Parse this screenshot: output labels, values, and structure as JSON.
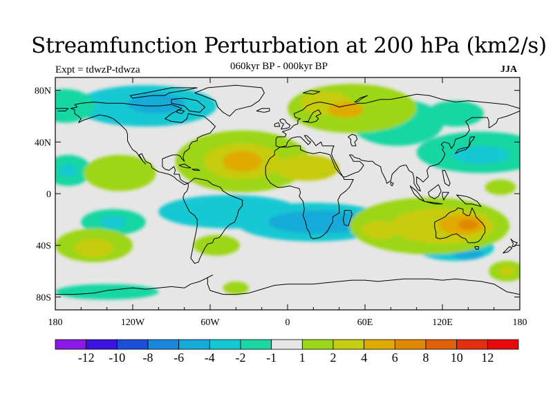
{
  "title": "Streamfunction Perturbation at 200 hPa (km2/s)",
  "subtitle_left": "Expt = tdwzP-tdwza",
  "subtitle_center": "060kyr BP - 000kyr BP",
  "subtitle_right": "JJA",
  "map": {
    "projection": "cylindrical-equidistant",
    "lon_range": [
      -180,
      180
    ],
    "lat_range": [
      -90,
      90
    ],
    "background_color": "#e6e6e6",
    "lon_ticks": [
      {
        "value": -180,
        "label": "180"
      },
      {
        "value": -120,
        "label": "120W"
      },
      {
        "value": -60,
        "label": "60W"
      },
      {
        "value": 0,
        "label": "0"
      },
      {
        "value": 60,
        "label": "60E"
      },
      {
        "value": 120,
        "label": "120E"
      },
      {
        "value": 180,
        "label": "180"
      }
    ],
    "lat_ticks": [
      {
        "value": 80,
        "label": "80N"
      },
      {
        "value": 40,
        "label": "40N"
      },
      {
        "value": 0,
        "label": "0"
      },
      {
        "value": -40,
        "label": "40S"
      },
      {
        "value": -80,
        "label": "80S"
      }
    ]
  },
  "colorbar": {
    "colors": [
      "#8a18e6",
      "#3a14de",
      "#1c4fd8",
      "#1a86dc",
      "#15aad8",
      "#15c8d2",
      "#19d6a2",
      "#e6e6e6",
      "#9cd619",
      "#c6cc10",
      "#e0aa06",
      "#e08806",
      "#e0600a",
      "#e03010",
      "#e60a0a"
    ],
    "labels": [
      "-12",
      "-10",
      "-8",
      "-6",
      "-4",
      "-2",
      "-1",
      "1",
      "2",
      "4",
      "6",
      "8",
      "10",
      "12"
    ]
  },
  "field_features": [
    {
      "lon": -110,
      "lat": 68,
      "rx": 55,
      "ry": 16,
      "level": -3
    },
    {
      "lon": -102,
      "lat": 70,
      "rx": 22,
      "ry": 8,
      "level": -4
    },
    {
      "lon": -172,
      "lat": 68,
      "rx": 22,
      "ry": 13,
      "level": -2
    },
    {
      "lon": 85,
      "lat": 55,
      "rx": 36,
      "ry": 18,
      "level": -2
    },
    {
      "lon": 130,
      "lat": 62,
      "rx": 22,
      "ry": 10,
      "level": -2
    },
    {
      "lon": 150,
      "lat": 32,
      "rx": 50,
      "ry": 16,
      "level": -2
    },
    {
      "lon": 150,
      "lat": 30,
      "rx": 22,
      "ry": 7,
      "level": -3
    },
    {
      "lon": -170,
      "lat": 18,
      "rx": 18,
      "ry": 12,
      "level": -2
    },
    {
      "lon": -170,
      "lat": 18,
      "rx": 7,
      "ry": 5,
      "level": -3
    },
    {
      "lon": -45,
      "lat": -14,
      "rx": 55,
      "ry": 13,
      "level": -3
    },
    {
      "lon": 20,
      "lat": -22,
      "rx": 60,
      "ry": 15,
      "level": -3
    },
    {
      "lon": 25,
      "lat": -22,
      "rx": 40,
      "ry": 9,
      "level": -4
    },
    {
      "lon": -135,
      "lat": -22,
      "rx": 25,
      "ry": 10,
      "level": -2
    },
    {
      "lon": -135,
      "lat": -22,
      "rx": 10,
      "ry": 5,
      "level": -3
    },
    {
      "lon": 130,
      "lat": -42,
      "rx": 30,
      "ry": 10,
      "level": -3
    },
    {
      "lon": 140,
      "lat": -47,
      "rx": 12,
      "ry": 4,
      "level": -4
    },
    {
      "lon": -140,
      "lat": -76,
      "rx": 40,
      "ry": 6,
      "level": -2
    },
    {
      "lon": 145,
      "lat": -76,
      "rx": 35,
      "ry": 6,
      "level": -1
    },
    {
      "lon": 50,
      "lat": 66,
      "rx": 50,
      "ry": 19,
      "level": 2
    },
    {
      "lon": 30,
      "lat": 70,
      "rx": 20,
      "ry": 9,
      "level": 4
    },
    {
      "lon": 45,
      "lat": 65,
      "rx": 14,
      "ry": 6,
      "level": 6
    },
    {
      "lon": -35,
      "lat": 25,
      "rx": 52,
      "ry": 24,
      "level": 2
    },
    {
      "lon": -35,
      "lat": 25,
      "rx": 30,
      "ry": 14,
      "level": 4
    },
    {
      "lon": -35,
      "lat": 25,
      "rx": 15,
      "ry": 8,
      "level": 6
    },
    {
      "lon": 15,
      "lat": 20,
      "rx": 25,
      "ry": 10,
      "level": 4
    },
    {
      "lon": -130,
      "lat": 16,
      "rx": 28,
      "ry": 14,
      "level": 2
    },
    {
      "lon": -150,
      "lat": -40,
      "rx": 30,
      "ry": 13,
      "level": 2
    },
    {
      "lon": -150,
      "lat": -42,
      "rx": 15,
      "ry": 7,
      "level": 4
    },
    {
      "lon": -55,
      "lat": -40,
      "rx": 18,
      "ry": 8,
      "level": 2
    },
    {
      "lon": 110,
      "lat": -25,
      "rx": 62,
      "ry": 22,
      "level": 2
    },
    {
      "lon": 120,
      "lat": -25,
      "rx": 40,
      "ry": 14,
      "level": 4
    },
    {
      "lon": 135,
      "lat": -24,
      "rx": 18,
      "ry": 8,
      "level": 6
    },
    {
      "lon": 140,
      "lat": -24,
      "rx": 8,
      "ry": 4,
      "level": 8
    },
    {
      "lon": 72,
      "lat": -28,
      "rx": 15,
      "ry": 7,
      "level": 4
    },
    {
      "lon": 165,
      "lat": 5,
      "rx": 12,
      "ry": 6,
      "level": 2
    },
    {
      "lon": 170,
      "lat": -60,
      "rx": 14,
      "ry": 8,
      "level": 2
    },
    {
      "lon": 170,
      "lat": -60,
      "rx": 6,
      "ry": 4,
      "level": 4
    },
    {
      "lon": -40,
      "lat": -73,
      "rx": 10,
      "ry": 5,
      "level": 2
    }
  ]
}
